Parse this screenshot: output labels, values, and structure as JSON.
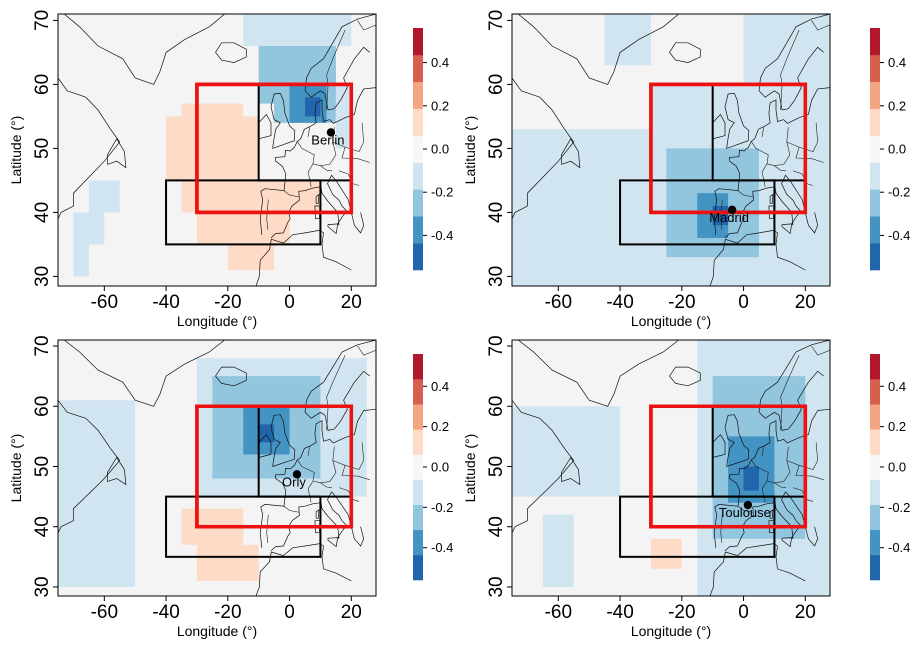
{
  "figure": {
    "colorbar_colors": [
      "#2166ac",
      "#4393c3",
      "#92c5de",
      "#d1e5f0",
      "#f7f7f7",
      "#fddbc7",
      "#f4a582",
      "#d6604d",
      "#b2182b"
    ],
    "land_color": "#f4f4f4",
    "box_color_outer": "#ee1111",
    "box_color_inner": "#000000"
  },
  "chart_data": [
    {
      "type": "heatmap",
      "xlabel": "Longitude (°)",
      "ylabel": "Latitude (°)",
      "xlim": [
        -75,
        28
      ],
      "ylim": [
        28.5,
        71
      ],
      "xticks": [
        -60,
        -40,
        -20,
        0,
        20
      ],
      "yticks": [
        30,
        40,
        50,
        60,
        70
      ],
      "colorbar": {
        "ticks": [
          "0.4",
          "0.2",
          "0.0",
          "-0.2",
          "-0.4"
        ],
        "range": [
          -0.56,
          0.56
        ]
      },
      "city": {
        "name": "Berlin",
        "lon": 13.4,
        "lat": 52.5
      },
      "boxes": [
        {
          "lon": [
            -30,
            20
          ],
          "lat": [
            40,
            60
          ]
        },
        {
          "lon": [
            -40,
            10
          ],
          "lat": [
            35,
            45
          ]
        },
        {
          "lon": [
            -10,
            20
          ],
          "lat": [
            45,
            60
          ]
        }
      ],
      "cells": [
        {
          "lon": [
            -15,
            20
          ],
          "lat": [
            66,
            71
          ],
          "v": -0.12
        },
        {
          "lon": [
            -10,
            15
          ],
          "lat": [
            57,
            66
          ],
          "v": -0.2
        },
        {
          "lon": [
            -5,
            15
          ],
          "lat": [
            54,
            63
          ],
          "v": -0.3
        },
        {
          "lon": [
            0,
            12
          ],
          "lat": [
            54,
            60
          ],
          "v": -0.4
        },
        {
          "lon": [
            5,
            10
          ],
          "lat": [
            55,
            58
          ],
          "v": -0.47
        },
        {
          "lon": [
            15,
            20
          ],
          "lat": [
            50,
            60
          ],
          "v": -0.12
        },
        {
          "lon": [
            -35,
            -15
          ],
          "lat": [
            55,
            57
          ],
          "v": 0.08
        },
        {
          "lon": [
            -40,
            -10
          ],
          "lat": [
            45,
            55
          ],
          "v": 0.08
        },
        {
          "lon": [
            -35,
            10
          ],
          "lat": [
            40,
            45
          ],
          "v": 0.08
        },
        {
          "lon": [
            -30,
            0
          ],
          "lat": [
            35,
            40
          ],
          "v": 0.08
        },
        {
          "lon": [
            -20,
            -5
          ],
          "lat": [
            31,
            35
          ],
          "v": 0.08
        },
        {
          "lon": [
            -20,
            -15
          ],
          "lat": [
            40,
            43
          ],
          "v": 0.15
        },
        {
          "lon": [
            -65,
            -55
          ],
          "lat": [
            40,
            45
          ],
          "v": -0.12
        },
        {
          "lon": [
            -70,
            -60
          ],
          "lat": [
            35,
            40
          ],
          "v": -0.12
        },
        {
          "lon": [
            -70,
            -65
          ],
          "lat": [
            30,
            35
          ],
          "v": -0.12
        }
      ]
    },
    {
      "type": "heatmap",
      "xlabel": "Longitude (°)",
      "ylabel": "Latitude (°)",
      "xlim": [
        -75,
        28
      ],
      "ylim": [
        28.5,
        71
      ],
      "xticks": [
        -60,
        -40,
        -20,
        0,
        20
      ],
      "yticks": [
        30,
        40,
        50,
        60,
        70
      ],
      "colorbar": {
        "ticks": [
          "0.4",
          "0.2",
          "0.0",
          "-0.2",
          "-0.4"
        ],
        "range": [
          -0.56,
          0.56
        ]
      },
      "city": {
        "name": "Madrid",
        "lon": -3.7,
        "lat": 40.4
      },
      "boxes": [
        {
          "lon": [
            -30,
            20
          ],
          "lat": [
            40,
            60
          ]
        },
        {
          "lon": [
            -40,
            10
          ],
          "lat": [
            35,
            45
          ]
        },
        {
          "lon": [
            -10,
            20
          ],
          "lat": [
            45,
            60
          ]
        }
      ],
      "cells": [
        {
          "lon": [
            -75,
            28
          ],
          "lat": [
            28.5,
            53
          ],
          "v": -0.12
        },
        {
          "lon": [
            -30,
            28
          ],
          "lat": [
            53,
            60
          ],
          "v": -0.12
        },
        {
          "lon": [
            -45,
            -30
          ],
          "lat": [
            63,
            71
          ],
          "v": -0.12
        },
        {
          "lon": [
            0,
            28
          ],
          "lat": [
            60,
            71
          ],
          "v": -0.12
        },
        {
          "lon": [
            -25,
            5
          ],
          "lat": [
            33,
            50
          ],
          "v": -0.2
        },
        {
          "lon": [
            -20,
            0
          ],
          "lat": [
            35,
            45
          ],
          "v": -0.3
        },
        {
          "lon": [
            -15,
            -5
          ],
          "lat": [
            36,
            43
          ],
          "v": -0.4
        },
        {
          "lon": [
            -10,
            -5
          ],
          "lat": [
            38,
            41
          ],
          "v": -0.47
        }
      ]
    },
    {
      "type": "heatmap",
      "xlabel": "Longitude (°)",
      "ylabel": "Latitude (°)",
      "xlim": [
        -75,
        28
      ],
      "ylim": [
        28.5,
        71
      ],
      "xticks": [
        -60,
        -40,
        -20,
        0,
        20
      ],
      "yticks": [
        30,
        40,
        50,
        60,
        70
      ],
      "colorbar": {
        "ticks": [
          "0.4",
          "0.2",
          "0.0",
          "-0.2",
          "-0.4"
        ],
        "range": [
          -0.56,
          0.56
        ]
      },
      "city": {
        "name": "Orly",
        "lon": 2.4,
        "lat": 48.7
      },
      "boxes": [
        {
          "lon": [
            -30,
            20
          ],
          "lat": [
            40,
            60
          ]
        },
        {
          "lon": [
            -40,
            10
          ],
          "lat": [
            35,
            45
          ]
        },
        {
          "lon": [
            -10,
            20
          ],
          "lat": [
            45,
            60
          ]
        }
      ],
      "cells": [
        {
          "lon": [
            -75,
            -50
          ],
          "lat": [
            30,
            61
          ],
          "v": -0.12
        },
        {
          "lon": [
            -30,
            25
          ],
          "lat": [
            45,
            68
          ],
          "v": -0.12
        },
        {
          "lon": [
            -25,
            10
          ],
          "lat": [
            48,
            65
          ],
          "v": -0.2
        },
        {
          "lon": [
            -20,
            5
          ],
          "lat": [
            50,
            62
          ],
          "v": -0.3
        },
        {
          "lon": [
            -15,
            0
          ],
          "lat": [
            52,
            60
          ],
          "v": -0.4
        },
        {
          "lon": [
            -10,
            -5
          ],
          "lat": [
            54,
            57
          ],
          "v": -0.47
        },
        {
          "lon": [
            -35,
            -15
          ],
          "lat": [
            37,
            43
          ],
          "v": 0.08
        },
        {
          "lon": [
            -30,
            -10
          ],
          "lat": [
            31,
            37
          ],
          "v": 0.08
        }
      ]
    },
    {
      "type": "heatmap",
      "xlabel": "Longitude (°)",
      "ylabel": "Latitude (°)",
      "xlim": [
        -75,
        28
      ],
      "ylim": [
        28.5,
        71
      ],
      "xticks": [
        -60,
        -40,
        -20,
        0,
        20
      ],
      "yticks": [
        30,
        40,
        50,
        60,
        70
      ],
      "colorbar": {
        "ticks": [
          "0.4",
          "0.2",
          "0.0",
          "-0.2",
          "-0.4"
        ],
        "range": [
          -0.56,
          0.56
        ]
      },
      "city": {
        "name": "Toulouse",
        "lon": 1.4,
        "lat": 43.6
      },
      "boxes": [
        {
          "lon": [
            -30,
            20
          ],
          "lat": [
            40,
            60
          ]
        },
        {
          "lon": [
            -40,
            10
          ],
          "lat": [
            35,
            45
          ]
        },
        {
          "lon": [
            -10,
            20
          ],
          "lat": [
            45,
            60
          ]
        }
      ],
      "cells": [
        {
          "lon": [
            -75,
            -40
          ],
          "lat": [
            45,
            60
          ],
          "v": -0.12
        },
        {
          "lon": [
            -65,
            -55
          ],
          "lat": [
            30,
            42
          ],
          "v": -0.12
        },
        {
          "lon": [
            -15,
            28
          ],
          "lat": [
            28.5,
            71
          ],
          "v": -0.12
        },
        {
          "lon": [
            -10,
            20
          ],
          "lat": [
            38,
            65
          ],
          "v": -0.2
        },
        {
          "lon": [
            -5,
            15
          ],
          "lat": [
            42,
            60
          ],
          "v": -0.3
        },
        {
          "lon": [
            -5,
            10
          ],
          "lat": [
            44,
            55
          ],
          "v": -0.4
        },
        {
          "lon": [
            0,
            5
          ],
          "lat": [
            46,
            50
          ],
          "v": -0.47
        },
        {
          "lon": [
            -30,
            -20
          ],
          "lat": [
            33,
            38
          ],
          "v": 0.08
        }
      ]
    }
  ]
}
